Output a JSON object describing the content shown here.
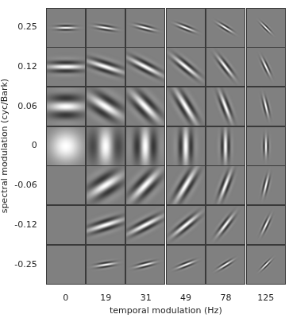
{
  "chart_data": {
    "type": "filter_grid",
    "x_label": "temporal modulation (Hz)",
    "y_label": "spectral modulation (cyc/Bark)",
    "categories": [
      0,
      19,
      31,
      49,
      78,
      125
    ],
    "y_categories": [
      0.25,
      0.12,
      0.06,
      0,
      -0.06,
      -0.12,
      -0.25
    ],
    "cells": [
      [
        1,
        1,
        1,
        1,
        1,
        1
      ],
      [
        1,
        1,
        1,
        1,
        1,
        1
      ],
      [
        1,
        1,
        1,
        1,
        1,
        1
      ],
      [
        1,
        1,
        1,
        1,
        1,
        1
      ],
      [
        0,
        1,
        1,
        1,
        1,
        1
      ],
      [
        0,
        1,
        1,
        1,
        1,
        1
      ],
      [
        0,
        1,
        1,
        1,
        1,
        1
      ]
    ],
    "grid": true
  }
}
